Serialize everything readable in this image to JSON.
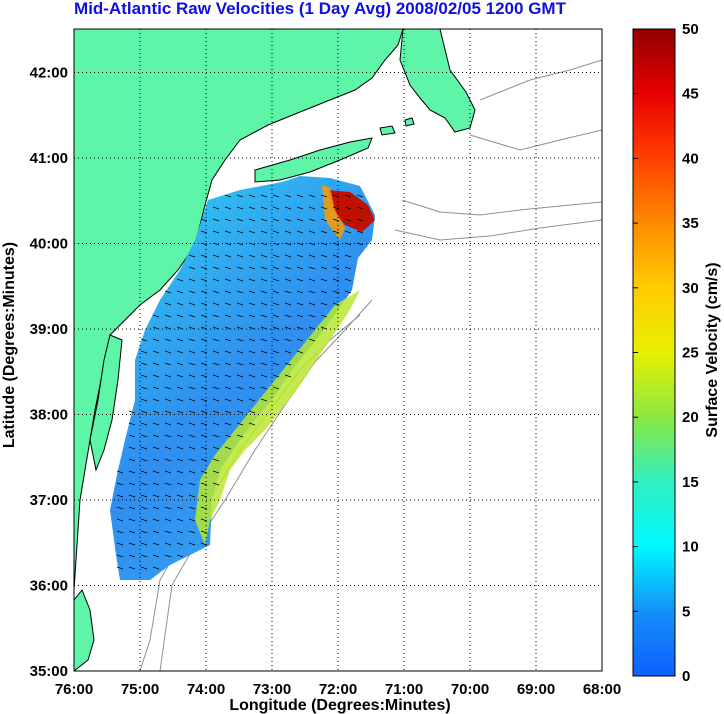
{
  "title": "Mid-Atlantic Raw Velocities (1 Day Avg) 2008/02/05 1200 GMT",
  "x_axis": {
    "label": "Longitude (Degrees:Minutes)",
    "ticks": [
      "76:00",
      "75:00",
      "74:00",
      "73:00",
      "72:00",
      "71:00",
      "70:00",
      "69:00",
      "68:00"
    ]
  },
  "y_axis": {
    "label": "Latitude (Degrees:Minutes)",
    "ticks": [
      "35:00",
      "36:00",
      "37:00",
      "38:00",
      "39:00",
      "40:00",
      "41:00",
      "42:00"
    ]
  },
  "colorbar": {
    "label": "Surface Velocity (cm/s)",
    "ticks": [
      "0",
      "5",
      "10",
      "15",
      "20",
      "25",
      "30",
      "35",
      "40",
      "45",
      "50"
    ],
    "range": [
      0,
      50
    ]
  },
  "colors": {
    "land": "#5ff5a8",
    "title": "#1010e0",
    "coast": "#000000",
    "bathymetry": "#909090"
  },
  "map_extent": {
    "lon": [
      -76,
      -68
    ],
    "lat": [
      35,
      42.5
    ]
  },
  "grid": true
}
